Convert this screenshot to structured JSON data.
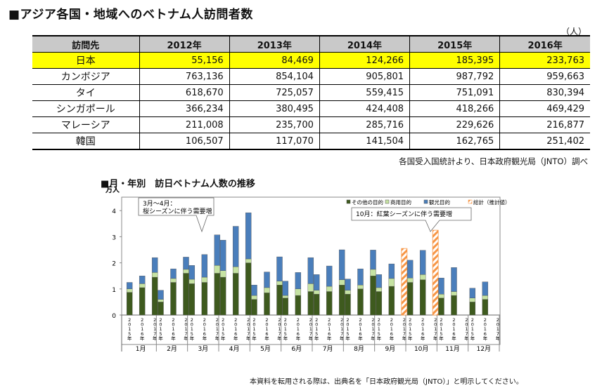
{
  "page_title": "■アジア各国・地域へのベトナム人訪問者数",
  "unit": "（人）",
  "table": {
    "headers": [
      "訪問先",
      "2012年",
      "2013年",
      "2014年",
      "2015年",
      "2016年"
    ],
    "rows": [
      {
        "label": "日本",
        "values": [
          "55,156",
          "84,469",
          "124,266",
          "185,395",
          "233,763"
        ]
      },
      {
        "label": "カンボジア",
        "values": [
          "763,136",
          "854,104",
          "905,801",
          "987,792",
          "959,663"
        ]
      },
      {
        "label": "タイ",
        "values": [
          "618,670",
          "725,057",
          "559,415",
          "751,091",
          "830,394"
        ]
      },
      {
        "label": "シンガポール",
        "values": [
          "366,234",
          "380,495",
          "424,408",
          "418,266",
          "469,429"
        ]
      },
      {
        "label": "マレーシア",
        "values": [
          "211,008",
          "235,700",
          "285,716",
          "229,626",
          "216,877"
        ]
      },
      {
        "label": "韓国",
        "values": [
          "106,507",
          "117,070",
          "141,504",
          "162,765",
          "251,402"
        ]
      }
    ]
  },
  "source": "各国受入国統計より、日本政府観光局（JNTO）調べ",
  "footnote": "本資料を転用される際は、出典名を「日本政府観光局（JNTO）」と明示してください。",
  "colors": {
    "other": "#3e5a1e",
    "business": "#c6e3a3",
    "tourism": "#4a7ebb",
    "estimate": "#f79646",
    "highlight": "#ffff00"
  },
  "chart_data": {
    "type": "bar",
    "title": "■月・年別　訪日ベトナム人数の推移",
    "ylabel": "万人",
    "ylim": [
      0,
      4
    ],
    "yticks": [
      0,
      1,
      2,
      3,
      4
    ],
    "months": [
      "1月",
      "2月",
      "3月",
      "4月",
      "5月",
      "6月",
      "7月",
      "8月",
      "9月",
      "10月",
      "11月",
      "12月"
    ],
    "years": [
      "2015年",
      "2016年",
      "2017年"
    ],
    "legend": [
      "その他の目的",
      "商用目的",
      "観光目的",
      "総計（推計値）"
    ],
    "stacks": [
      [
        [
          0.87,
          0.13,
          0.25
        ],
        [
          1.05,
          0.15,
          0.3
        ],
        [
          1.45,
          0.18,
          0.57
        ]
      ],
      [
        [
          0.5,
          0.1,
          0.35
        ],
        [
          1.25,
          0.15,
          0.37
        ],
        [
          1.6,
          0.15,
          0.47
        ]
      ],
      [
        [
          1.2,
          0.17,
          0.53
        ],
        [
          1.25,
          0.2,
          0.87
        ],
        [
          1.6,
          0.3,
          1.17
        ]
      ],
      [
        [
          1.45,
          0.25,
          1.17
        ],
        [
          1.6,
          0.25,
          1.55
        ],
        [
          2.0,
          0.15,
          1.77
        ]
      ],
      [
        [
          0.6,
          0.15,
          0.4
        ],
        [
          0.85,
          0.2,
          0.6
        ],
        [
          1.15,
          0.15,
          0.93
        ]
      ],
      [
        [
          0.65,
          0.1,
          0.55
        ],
        [
          0.75,
          0.25,
          0.63
        ],
        [
          0.9,
          0.3,
          1.0
        ]
      ],
      [
        [
          0.8,
          0.15,
          0.6
        ],
        [
          0.9,
          0.2,
          0.78
        ],
        [
          1.15,
          0.2,
          1.15
        ]
      ],
      [
        [
          0.8,
          0.15,
          0.43
        ],
        [
          1.0,
          0.15,
          0.62
        ],
        [
          1.5,
          0.25,
          0.74
        ]
      ],
      [
        [
          0.9,
          0.15,
          0.5
        ],
        [
          1.1,
          0.3,
          0.56
        ],
        null
      ],
      [
        [
          1.25,
          0.17,
          0.68
        ],
        [
          1.35,
          0.2,
          0.93
        ],
        null
      ],
      [
        [
          0.65,
          0.15,
          0.62
        ],
        [
          0.75,
          0.15,
          0.92
        ],
        null
      ],
      [
        [
          0.5,
          0.15,
          0.38
        ],
        [
          0.6,
          0.15,
          0.52
        ],
        null
      ]
    ],
    "estimate": [
      null,
      null,
      null,
      null,
      null,
      null,
      null,
      null,
      2.55,
      3.25,
      null,
      null
    ],
    "annotations": [
      {
        "lines": [
          "3月～4月：",
          "桜シーズンに伴う需要増"
        ]
      },
      {
        "lines": [
          "10月：紅葉シーズンに伴う需要増"
        ]
      }
    ]
  }
}
